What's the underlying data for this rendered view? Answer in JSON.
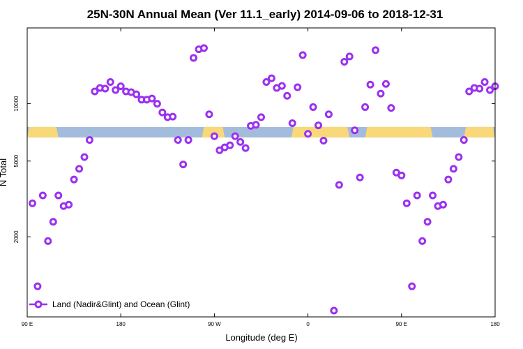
{
  "chart_data": {
    "type": "scatter",
    "title": "25N-30N Annual Mean (Ver 11.1_early)   2014-09-06 to 2018-12-31",
    "xlabel": "Longitude (deg E)",
    "ylabel": "N Total",
    "x_ticks": [
      {
        "value": 0,
        "label": "90 E"
      },
      {
        "value": 90,
        "label": "180"
      },
      {
        "value": 180,
        "label": "90 W"
      },
      {
        "value": 270,
        "label": "0"
      },
      {
        "value": 360,
        "label": "90 E"
      },
      {
        "value": 450,
        "label": "180"
      }
    ],
    "y_ticks": [
      {
        "value": 2000,
        "label": "2000"
      },
      {
        "value": 5000,
        "label": "5000"
      },
      {
        "value": 10000,
        "label": "10000"
      }
    ],
    "y_scale": "log",
    "xlim": [
      0,
      450
    ],
    "ylim": [
      760,
      25000
    ],
    "colors": {
      "series": "#9B30F0",
      "land": "#F8D878",
      "ocean": "#A4BCDC"
    },
    "land_ocean_band": {
      "y_range": [
        6650,
        7550
      ],
      "land_x_ranges": [
        [
          0,
          30
        ],
        [
          168,
          190
        ],
        [
          254,
          310
        ],
        [
          325,
          390
        ],
        [
          420,
          450
        ]
      ]
    },
    "series": [
      {
        "name": "Land (Nadir&Glint) and Ocean (Glint)",
        "marker": "open-circle",
        "points": [
          [
            5,
            3000
          ],
          [
            10,
            1100
          ],
          [
            15,
            3300
          ],
          [
            20,
            1900
          ],
          [
            25,
            2400
          ],
          [
            30,
            3300
          ],
          [
            35,
            2900
          ],
          [
            40,
            2950
          ],
          [
            45,
            4000
          ],
          [
            50,
            4550
          ],
          [
            55,
            5250
          ],
          [
            60,
            6450
          ],
          [
            65,
            11600
          ],
          [
            70,
            12100
          ],
          [
            75,
            12000
          ],
          [
            80,
            13000
          ],
          [
            85,
            11800
          ],
          [
            90,
            12350
          ],
          [
            95,
            11600
          ],
          [
            100,
            11500
          ],
          [
            105,
            11200
          ],
          [
            110,
            10500
          ],
          [
            115,
            10500
          ],
          [
            120,
            10650
          ],
          [
            125,
            10000
          ],
          [
            130,
            9000
          ],
          [
            135,
            8500
          ],
          [
            140,
            8550
          ],
          [
            145,
            6450
          ],
          [
            150,
            4800
          ],
          [
            155,
            6450
          ],
          [
            160,
            17400
          ],
          [
            165,
            19300
          ],
          [
            170,
            19600
          ],
          [
            175,
            8800
          ],
          [
            180,
            6750
          ],
          [
            185,
            5700
          ],
          [
            190,
            5900
          ],
          [
            195,
            6050
          ],
          [
            200,
            6750
          ],
          [
            205,
            6300
          ],
          [
            210,
            5850
          ],
          [
            215,
            7650
          ],
          [
            220,
            7750
          ],
          [
            225,
            8500
          ],
          [
            230,
            13000
          ],
          [
            235,
            13600
          ],
          [
            240,
            12100
          ],
          [
            245,
            12400
          ],
          [
            250,
            11000
          ],
          [
            255,
            7900
          ],
          [
            260,
            12200
          ],
          [
            265,
            18000
          ],
          [
            270,
            6950
          ],
          [
            275,
            9600
          ],
          [
            280,
            7700
          ],
          [
            285,
            6400
          ],
          [
            290,
            8800
          ],
          [
            295,
            820
          ],
          [
            300,
            3750
          ],
          [
            305,
            16600
          ],
          [
            310,
            17700
          ],
          [
            315,
            7250
          ],
          [
            320,
            4100
          ],
          [
            325,
            9600
          ],
          [
            330,
            12600
          ],
          [
            335,
            19100
          ],
          [
            340,
            11300
          ],
          [
            345,
            12700
          ],
          [
            350,
            9500
          ],
          [
            355,
            4350
          ],
          [
            360,
            4200
          ],
          [
            365,
            3000
          ],
          [
            370,
            1100
          ],
          [
            375,
            3300
          ],
          [
            380,
            1900
          ],
          [
            385,
            2400
          ],
          [
            390,
            3300
          ],
          [
            395,
            2900
          ],
          [
            400,
            2950
          ],
          [
            405,
            4000
          ],
          [
            410,
            4550
          ],
          [
            415,
            5250
          ],
          [
            420,
            6450
          ],
          [
            425,
            11600
          ],
          [
            430,
            12100
          ],
          [
            435,
            12000
          ],
          [
            440,
            13000
          ],
          [
            445,
            11800
          ],
          [
            450,
            12350
          ]
        ]
      }
    ],
    "legend": {
      "position": "bottom-left",
      "entries": [
        "Land (Nadir&Glint) and Ocean (Glint)"
      ]
    }
  }
}
